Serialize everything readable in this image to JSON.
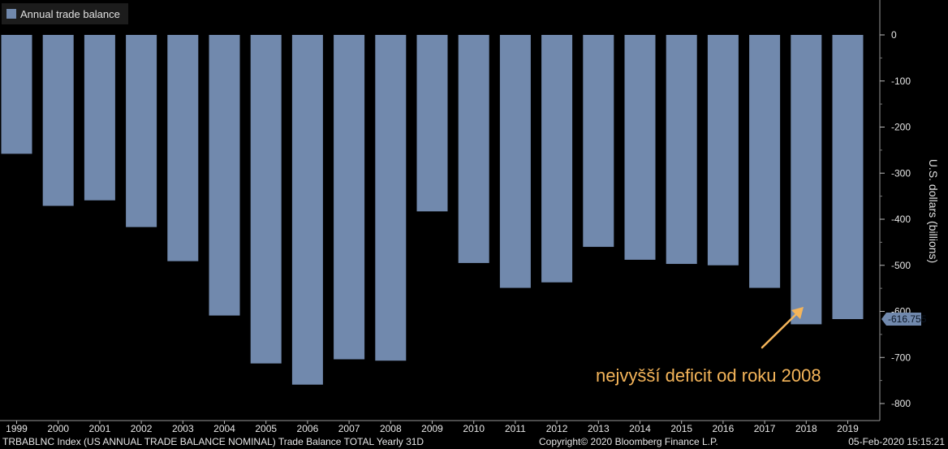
{
  "legend": {
    "label": "Annual trade balance",
    "color": "#7189ad"
  },
  "annotation": {
    "text": "nejvyšší deficit od roku 2008",
    "color": "#f5b55a"
  },
  "footer": {
    "left": "TRBABLNC Index (US ANNUAL TRADE BALANCE NOMINAL) Trade Balance TOTAL  Yearly 31D",
    "center": "Copyright© 2020 Bloomberg Finance L.P.",
    "right": "05-Feb-2020 15:15:21"
  },
  "chart_data": {
    "type": "bar",
    "categories": [
      "1999",
      "2000",
      "2001",
      "2002",
      "2003",
      "2004",
      "2005",
      "2006",
      "2007",
      "2008",
      "2009",
      "2010",
      "2011",
      "2012",
      "2013",
      "2014",
      "2015",
      "2016",
      "2017",
      "2018",
      "2019"
    ],
    "series": [
      {
        "name": "Annual trade balance",
        "values": [
          -258,
          -371,
          -359,
          -417,
          -491,
          -609,
          -713,
          -759,
          -704,
          -707,
          -383,
          -495,
          -549,
          -537,
          -460,
          -488,
          -497,
          -500,
          -549,
          -628,
          -616.755
        ]
      }
    ],
    "ylabel": "U.S. dollars (billions)",
    "ylim": [
      -800,
      0
    ],
    "yticks": [
      0,
      -100,
      -200,
      -300,
      -400,
      -500,
      -600,
      -700,
      -800
    ],
    "last_value_label": "-616.755",
    "grid": false,
    "legend_position": "top-left"
  }
}
